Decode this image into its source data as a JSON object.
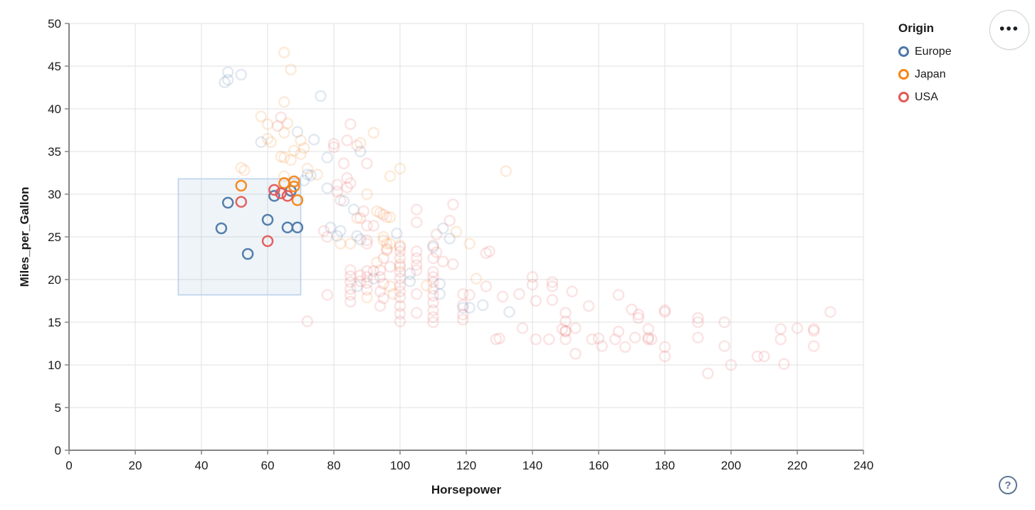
{
  "chart_data": {
    "type": "scatter",
    "title": "",
    "xlabel": "Horsepower",
    "ylabel": "Miles_per_Gallon",
    "xlim": [
      0,
      240
    ],
    "ylim": [
      0,
      50
    ],
    "x_ticks": [
      0,
      20,
      40,
      60,
      80,
      100,
      120,
      140,
      160,
      180,
      200,
      220,
      240
    ],
    "y_ticks": [
      0,
      5,
      10,
      15,
      20,
      25,
      30,
      35,
      40,
      45,
      50
    ],
    "grid": true,
    "legend": {
      "title": "Origin",
      "position": "top-right",
      "entries": [
        {
          "label": "Europe",
          "color": "#4c78a8"
        },
        {
          "label": "Japan",
          "color": "#f58518"
        },
        {
          "label": "USA",
          "color": "#e45756"
        }
      ]
    },
    "brush_selection": {
      "x": [
        33,
        70
      ],
      "y": [
        18.2,
        31.8
      ]
    },
    "point_style": {
      "radius": 7,
      "stroke_width": 2.5,
      "unselected_opacity": 0.16,
      "selected_opacity": 0.95
    },
    "series": [
      {
        "name": "Europe",
        "color": "#4c78a8",
        "selected": [
          [
            46,
            26
          ],
          [
            48,
            29
          ],
          [
            54,
            23
          ],
          [
            60,
            27
          ],
          [
            62,
            29.8
          ],
          [
            67,
            30.4
          ],
          [
            66,
            26.1
          ],
          [
            69,
            26.1
          ]
        ],
        "points": [
          [
            48,
            44.3
          ],
          [
            48,
            43.4
          ],
          [
            47,
            43.1
          ],
          [
            52,
            44
          ],
          [
            76,
            41.5
          ],
          [
            69,
            37.3
          ],
          [
            74,
            36.4
          ],
          [
            58,
            36.1
          ],
          [
            88,
            35
          ],
          [
            78,
            34.3
          ],
          [
            72,
            32.3
          ],
          [
            73,
            32.2
          ],
          [
            71,
            31.6
          ],
          [
            78,
            30.7
          ],
          [
            83,
            29.2
          ],
          [
            86,
            28.2
          ],
          [
            79,
            26.1
          ],
          [
            82,
            25.7
          ],
          [
            81,
            25.1
          ],
          [
            87,
            25.1
          ],
          [
            88,
            24.7
          ],
          [
            99,
            25.4
          ],
          [
            113,
            26
          ],
          [
            115,
            24.8
          ],
          [
            110,
            23.8
          ],
          [
            103,
            20.7
          ],
          [
            103,
            19.8
          ],
          [
            92,
            20.1
          ],
          [
            87,
            19.2
          ],
          [
            112,
            19.5
          ],
          [
            112,
            18.3
          ],
          [
            119,
            16.7
          ],
          [
            121,
            16.7
          ],
          [
            125,
            17
          ],
          [
            133,
            16.2
          ]
        ]
      },
      {
        "name": "Japan",
        "color": "#f58518",
        "selected": [
          [
            52,
            31
          ],
          [
            65,
            31.3
          ],
          [
            68,
            31.5
          ],
          [
            68,
            30.9
          ],
          [
            69,
            29.3
          ]
        ],
        "points": [
          [
            65,
            46.6
          ],
          [
            67,
            44.6
          ],
          [
            65,
            40.8
          ],
          [
            58,
            39.1
          ],
          [
            60,
            38.2
          ],
          [
            66,
            38.3
          ],
          [
            65,
            37.2
          ],
          [
            70,
            36.3
          ],
          [
            61,
            36.1
          ],
          [
            60,
            36.5
          ],
          [
            92,
            37.2
          ],
          [
            88,
            36
          ],
          [
            100,
            33
          ],
          [
            97,
            32.1
          ],
          [
            132,
            32.7
          ],
          [
            52,
            33.1
          ],
          [
            53,
            32.8
          ],
          [
            64,
            34.4
          ],
          [
            65,
            34.3
          ],
          [
            67,
            34
          ],
          [
            68,
            35.1
          ],
          [
            70,
            34.7
          ],
          [
            71,
            35.4
          ],
          [
            72,
            33
          ],
          [
            65,
            32.1
          ],
          [
            75,
            32.3
          ],
          [
            90,
            30
          ],
          [
            87,
            27.2
          ],
          [
            94,
            27.8
          ],
          [
            96,
            27.3
          ],
          [
            93,
            28
          ],
          [
            97,
            27.3
          ],
          [
            95,
            25
          ],
          [
            95,
            24.6
          ],
          [
            96,
            24.2
          ],
          [
            97,
            24.2
          ],
          [
            100,
            24
          ],
          [
            96,
            23.4
          ],
          [
            82,
            24.2
          ],
          [
            85,
            24.2
          ],
          [
            117,
            25.6
          ],
          [
            121,
            24.2
          ],
          [
            123,
            20.1
          ],
          [
            90,
            17.9
          ],
          [
            97,
            19.2
          ],
          [
            98,
            18.3
          ],
          [
            108,
            19.3
          ],
          [
            93,
            22
          ],
          [
            100,
            21.8
          ]
        ]
      },
      {
        "name": "USA",
        "color": "#e45756",
        "selected": [
          [
            52,
            29.1
          ],
          [
            60,
            24.5
          ],
          [
            62,
            30.5
          ],
          [
            64,
            30.1
          ],
          [
            66,
            29.8
          ]
        ],
        "points": [
          [
            64,
            39
          ],
          [
            63,
            38
          ],
          [
            85,
            38.2
          ],
          [
            84,
            36.3
          ],
          [
            87,
            35.7
          ],
          [
            80,
            35.9
          ],
          [
            80,
            35.5
          ],
          [
            90,
            33.6
          ],
          [
            83,
            33.6
          ],
          [
            84,
            31.9
          ],
          [
            85,
            31.3
          ],
          [
            81,
            31.1
          ],
          [
            84,
            30.8
          ],
          [
            81,
            30.3
          ],
          [
            82,
            29.3
          ],
          [
            89,
            28
          ],
          [
            88,
            27.2
          ],
          [
            95,
            27.6
          ],
          [
            105,
            28.2
          ],
          [
            116,
            28.8
          ],
          [
            115,
            26.9
          ],
          [
            105,
            26.7
          ],
          [
            90,
            26.3
          ],
          [
            92,
            26.3
          ],
          [
            77,
            25.7
          ],
          [
            78,
            25
          ],
          [
            90,
            24.6
          ],
          [
            90,
            24.2
          ],
          [
            111,
            25.3
          ],
          [
            111,
            23.2
          ],
          [
            110,
            24
          ],
          [
            100,
            23.8
          ],
          [
            100,
            23.3
          ],
          [
            100,
            22.5
          ],
          [
            100,
            21.5
          ],
          [
            100,
            20.9
          ],
          [
            100,
            20.1
          ],
          [
            105,
            23.3
          ],
          [
            105,
            22.5
          ],
          [
            105,
            21.7
          ],
          [
            105,
            21.1
          ],
          [
            116,
            21.8
          ],
          [
            110,
            22.5
          ],
          [
            113,
            22.1
          ],
          [
            110,
            20.9
          ],
          [
            110,
            20.3
          ],
          [
            126,
            23.1
          ],
          [
            127,
            23.3
          ],
          [
            96,
            23.6
          ],
          [
            95,
            22.5
          ],
          [
            97,
            21.5
          ],
          [
            92,
            21
          ],
          [
            85,
            21.1
          ],
          [
            85,
            20.4
          ],
          [
            85,
            19.7
          ],
          [
            85,
            18.9
          ],
          [
            85,
            18.2
          ],
          [
            85,
            17.4
          ],
          [
            88,
            20.5
          ],
          [
            88,
            19.8
          ],
          [
            90,
            21
          ],
          [
            90,
            20.3
          ],
          [
            90,
            19.6
          ],
          [
            90,
            18.8
          ],
          [
            94,
            21.1
          ],
          [
            94,
            20.3
          ],
          [
            95,
            19.5
          ],
          [
            94,
            18.6
          ],
          [
            95,
            17.8
          ],
          [
            94,
            16.9
          ],
          [
            100,
            19.3
          ],
          [
            100,
            18.6
          ],
          [
            100,
            17.9
          ],
          [
            100,
            16.9
          ],
          [
            100,
            16
          ],
          [
            100,
            15.1
          ],
          [
            105,
            18.3
          ],
          [
            105,
            16.1
          ],
          [
            110,
            19.7
          ],
          [
            110,
            18.9
          ],
          [
            110,
            18.1
          ],
          [
            110,
            17.3
          ],
          [
            110,
            16.4
          ],
          [
            110,
            15.6
          ],
          [
            110,
            15
          ],
          [
            72,
            15.1
          ],
          [
            78,
            18.2
          ],
          [
            119,
            18.3
          ],
          [
            119,
            17
          ],
          [
            119,
            15.9
          ],
          [
            119,
            15.3
          ],
          [
            121,
            18.2
          ],
          [
            126,
            19.2
          ],
          [
            131,
            18
          ],
          [
            136,
            18.3
          ],
          [
            130,
            13.1
          ],
          [
            129,
            13
          ],
          [
            137,
            14.3
          ],
          [
            140,
            20.3
          ],
          [
            140,
            19.4
          ],
          [
            141,
            17.5
          ],
          [
            141,
            13
          ],
          [
            146,
            19.7
          ],
          [
            146,
            19.2
          ],
          [
            146,
            17.6
          ],
          [
            145,
            13
          ],
          [
            149,
            14.2
          ],
          [
            150,
            16.1
          ],
          [
            150,
            15.1
          ],
          [
            150,
            14
          ],
          [
            150,
            13.9
          ],
          [
            150,
            13
          ],
          [
            152,
            18.6
          ],
          [
            153,
            14.3
          ],
          [
            157,
            16.9
          ],
          [
            158,
            13
          ],
          [
            160,
            13.1
          ],
          [
            161,
            12.2
          ],
          [
            153,
            11.3
          ],
          [
            166,
            13.9
          ],
          [
            165,
            13
          ],
          [
            166,
            18.2
          ],
          [
            170,
            16.5
          ],
          [
            172,
            15.9
          ],
          [
            172,
            15.5
          ],
          [
            168,
            12.1
          ],
          [
            171,
            13.2
          ],
          [
            175,
            14.2
          ],
          [
            175,
            13.2
          ],
          [
            175,
            13
          ],
          [
            176,
            13
          ],
          [
            180,
            16.4
          ],
          [
            180,
            16.2
          ],
          [
            180,
            12.1
          ],
          [
            180,
            11
          ],
          [
            190,
            15.5
          ],
          [
            190,
            15
          ],
          [
            190,
            13.2
          ],
          [
            198,
            15
          ],
          [
            198,
            12.2
          ],
          [
            200,
            10
          ],
          [
            193,
            9
          ],
          [
            208,
            11
          ],
          [
            210,
            11
          ],
          [
            215,
            14.2
          ],
          [
            215,
            13
          ],
          [
            216,
            10.1
          ],
          [
            220,
            14.3
          ],
          [
            225,
            14.2
          ],
          [
            225,
            14
          ],
          [
            225,
            12.2
          ],
          [
            230,
            16.2
          ]
        ]
      }
    ]
  },
  "ui": {
    "actions_button": "•••",
    "help_button": "?"
  }
}
